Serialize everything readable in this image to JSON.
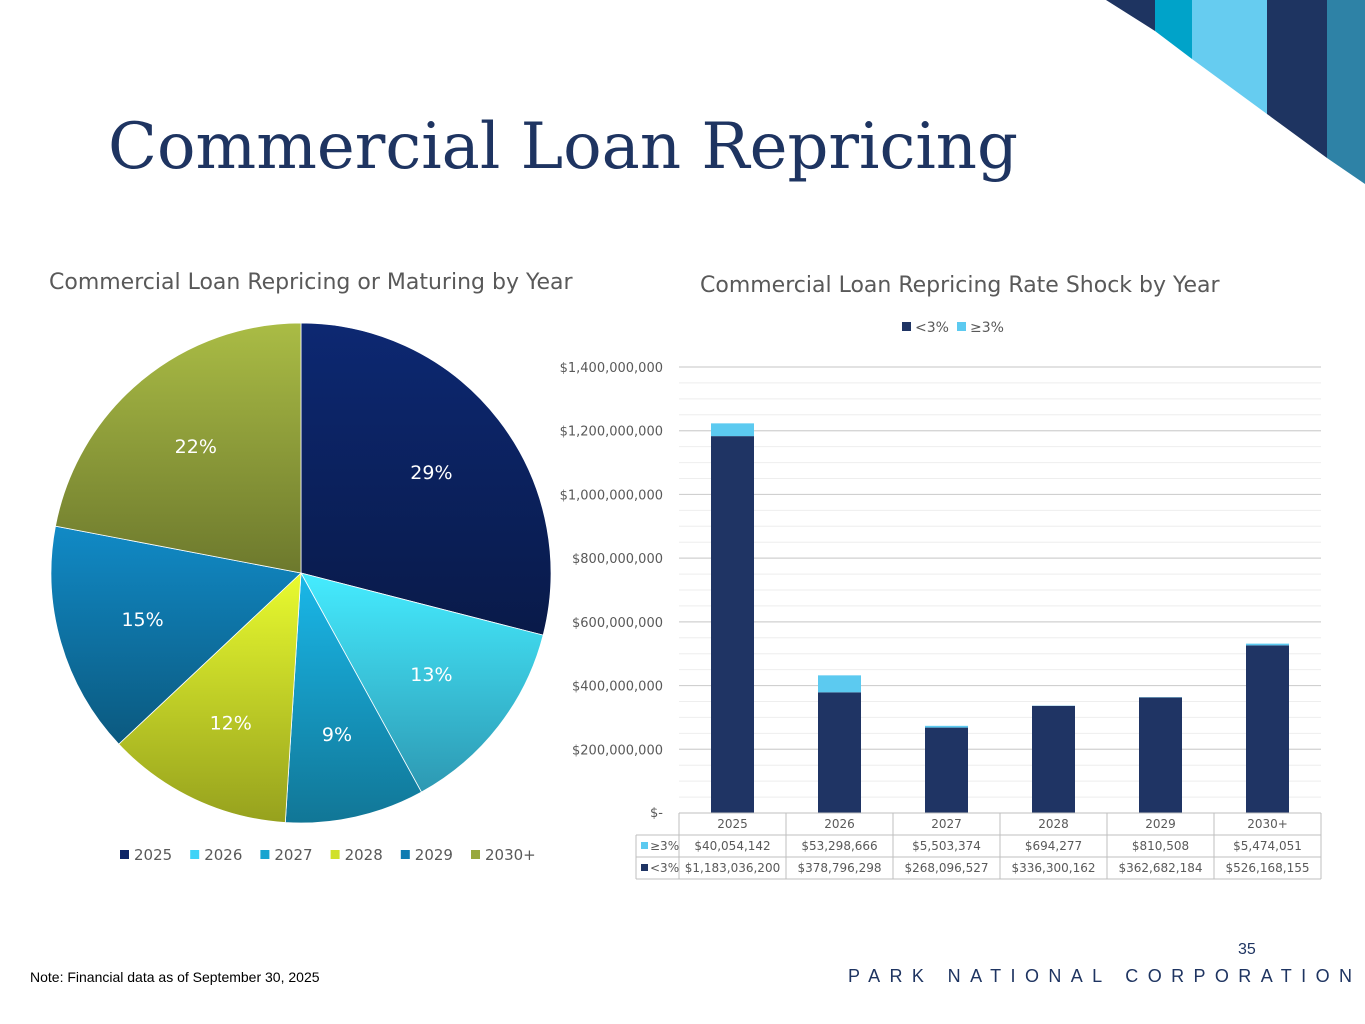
{
  "slide": {
    "title": "Commercial Loan Repricing",
    "note": "Note: Financial data as of September 30, 2025",
    "page_number": "35",
    "company": "PARK NATIONAL CORPORATION"
  },
  "colors": {
    "navy": "#1e3461",
    "light_blue": "#5ac8ee",
    "cyan": "#00a3c9",
    "teal": "#2e82a6"
  },
  "chart_data": [
    {
      "type": "pie",
      "title": "Commercial Loan Repricing or Maturing by Year",
      "categories": [
        "2025",
        "2026",
        "2027",
        "2028",
        "2029",
        "2030+"
      ],
      "values": [
        29,
        13,
        9,
        12,
        15,
        22
      ],
      "labels": [
        "29%",
        "13%",
        "9%",
        "12%",
        "15%",
        "22%"
      ],
      "colors": [
        "#0c2466",
        "#3ed3f7",
        "#17a4d0",
        "#d0e02a",
        "#0f7bb1",
        "#98a83e"
      ],
      "legend": "bottom"
    },
    {
      "type": "bar",
      "stacked": true,
      "title": "Commercial Loan Repricing Rate Shock by Year",
      "categories": [
        "2025",
        "2026",
        "2027",
        "2028",
        "2029",
        "2030+"
      ],
      "series": [
        {
          "name": "<3%",
          "color": "#1f3464",
          "values": [
            1183036200,
            378796298,
            268096527,
            336300162,
            362682184,
            526168155
          ],
          "display": [
            "$1,183,036,200",
            "$378,796,298",
            "$268,096,527",
            "$336,300,162",
            "$362,682,184",
            "$526,168,155"
          ]
        },
        {
          "name": "≥3%",
          "color": "#5ccaf0",
          "values": [
            40054142,
            53298666,
            5503374,
            694277,
            810508,
            5474051
          ],
          "display": [
            "$40,054,142",
            "$53,298,666",
            "$5,503,374",
            "$694,277",
            "$810,508",
            "$5,474,051"
          ]
        }
      ],
      "legend": "top",
      "ylim": [
        0,
        1400000000
      ],
      "yticks": [
        0,
        200000000,
        400000000,
        600000000,
        800000000,
        1000000000,
        1200000000,
        1400000000
      ],
      "ytick_labels": [
        "$-",
        "$200,000,000",
        "$400,000,000",
        "$600,000,000",
        "$800,000,000",
        "$1,000,000,000",
        "$1,200,000,000",
        "$1,400,000,000"
      ],
      "data_table": true,
      "grid": true
    }
  ]
}
